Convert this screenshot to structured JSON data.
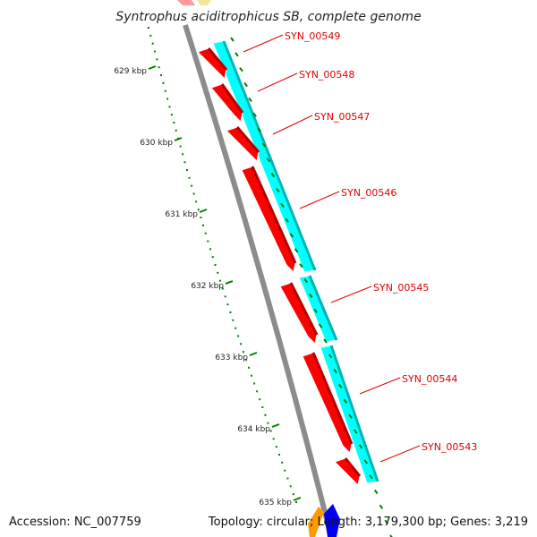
{
  "title": "Syntrophus aciditrophicus SB, complete genome",
  "accession": "Accession: NC_007759",
  "summary": "Topology: circular; Length: 3,179,300 bp; Genes: 3,219",
  "colors": {
    "forward_cds": "#ff0000",
    "forward_cds_dark": "#b40000",
    "gene": "#00ffff",
    "gene_dark": "#00b4b4",
    "backbone": "#888888",
    "tick": "#008000",
    "label": "#e00000"
  },
  "scale_ticks": [
    {
      "label": "629 kbp"
    },
    {
      "label": "630 kbp"
    },
    {
      "label": "631 kbp"
    },
    {
      "label": "632 kbp"
    },
    {
      "label": "633 kbp"
    },
    {
      "label": "634 kbp"
    },
    {
      "label": "635 kbp"
    }
  ],
  "genes": [
    {
      "locus_tag": "SYN_00549"
    },
    {
      "locus_tag": "SYN_00548"
    },
    {
      "locus_tag": "SYN_00547"
    },
    {
      "locus_tag": "SYN_00546"
    },
    {
      "locus_tag": "SYN_00545"
    },
    {
      "locus_tag": "SYN_00544"
    },
    {
      "locus_tag": "SYN_00543"
    }
  ]
}
